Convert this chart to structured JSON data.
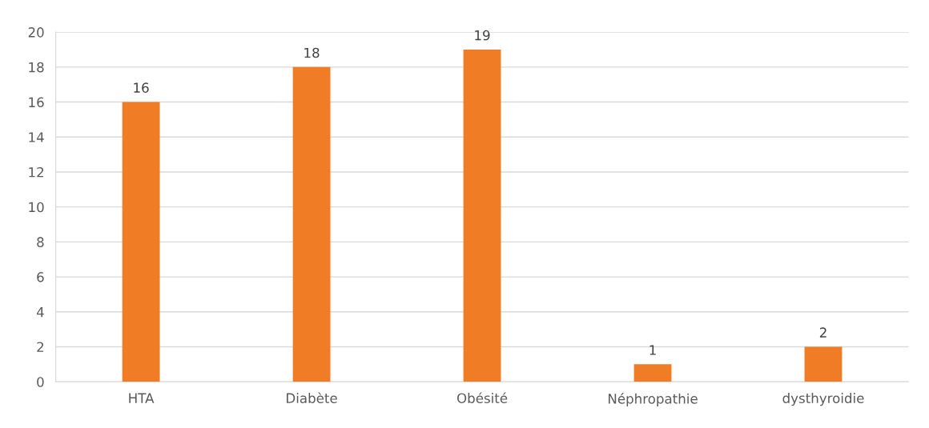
{
  "chart_data": {
    "type": "bar",
    "categories": [
      "HTA",
      "Diabète",
      "Obésité",
      "Néphropathie",
      "dysthyroidie"
    ],
    "values": [
      16,
      18,
      19,
      1,
      2
    ],
    "color": "#f07c26",
    "ylim": [
      0,
      20
    ],
    "yticks": [
      0,
      2,
      4,
      6,
      8,
      10,
      12,
      14,
      16,
      18,
      20
    ],
    "grid": "y",
    "data_labels": true,
    "legend": false
  }
}
